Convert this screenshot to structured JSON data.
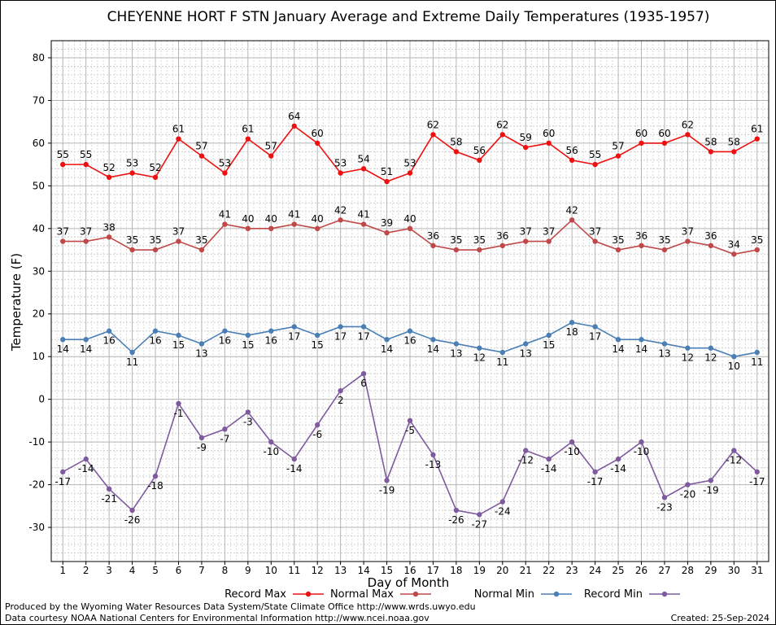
{
  "chart_data": {
    "type": "line",
    "title": "CHEYENNE HORT F STN January Average and Extreme Daily Temperatures (1935-1957)",
    "xlabel": "Day of Month",
    "ylabel": "Temperature (F)",
    "ylim": [
      -38,
      84
    ],
    "yticks": [
      -30,
      -20,
      -10,
      0,
      10,
      20,
      30,
      40,
      50,
      60,
      70,
      80
    ],
    "x": [
      1,
      2,
      3,
      4,
      5,
      6,
      7,
      8,
      9,
      10,
      11,
      12,
      13,
      14,
      15,
      16,
      17,
      18,
      19,
      20,
      21,
      22,
      23,
      24,
      25,
      26,
      27,
      28,
      29,
      30,
      31
    ],
    "grid": true,
    "legend_position": "bottom",
    "series": [
      {
        "name": "Record Max",
        "color": "#ee1111",
        "label_position": "above",
        "values": [
          55,
          55,
          52,
          53,
          52,
          61,
          57,
          53,
          61,
          57,
          64,
          60,
          53,
          54,
          51,
          53,
          62,
          58,
          56,
          62,
          59,
          60,
          56,
          55,
          57,
          60,
          60,
          62,
          58,
          58,
          61
        ]
      },
      {
        "name": "Normal Max",
        "color": "#c04848",
        "label_position": "above",
        "values": [
          37,
          37,
          38,
          35,
          35,
          37,
          35,
          41,
          40,
          40,
          41,
          40,
          42,
          41,
          39,
          40,
          36,
          35,
          35,
          36,
          37,
          37,
          42,
          37,
          35,
          36,
          35,
          37,
          36,
          34,
          35
        ]
      },
      {
        "name": "Normal Min",
        "color": "#4a7fb5",
        "label_position": "below",
        "values": [
          14,
          14,
          16,
          11,
          16,
          15,
          13,
          16,
          15,
          16,
          17,
          15,
          17,
          17,
          14,
          16,
          14,
          13,
          12,
          11,
          13,
          15,
          18,
          17,
          14,
          14,
          13,
          12,
          12,
          10,
          11
        ]
      },
      {
        "name": "Record Min",
        "color": "#7f5a9e",
        "label_position": "below",
        "values": [
          -17,
          -14,
          -21,
          -26,
          -18,
          -1,
          -9,
          -7,
          -3,
          -10,
          -14,
          -6,
          2,
          6,
          -19,
          -5,
          -13,
          -26,
          -27,
          -24,
          -12,
          -14,
          -10,
          -17,
          -14,
          -10,
          -23,
          -20,
          -19,
          -12,
          -17
        ]
      }
    ]
  },
  "footer": {
    "produced_by": "Produced by the Wyoming Water Resources Data System/State Climate Office http://www.wrds.uwyo.edu",
    "data_courtesy": "Data courtesy NOAA National Centers for Environmental Information http://www.ncei.noaa.gov",
    "created": "Created:  25-Sep-2024"
  }
}
